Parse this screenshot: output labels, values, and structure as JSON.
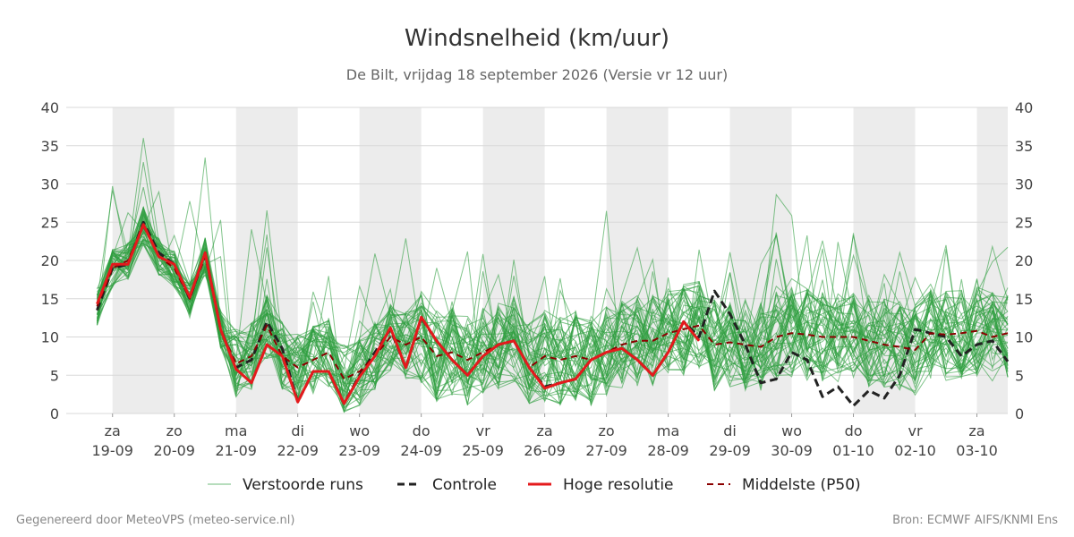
{
  "chart_data": {
    "type": "line",
    "title": "Windsnelheid (km/uur)",
    "subtitle": "De Bilt, vrijdag 18 september 2026 (Versie vr 12 uur)",
    "ylim": [
      0,
      40
    ],
    "yticks": [
      0,
      5,
      10,
      15,
      20,
      25,
      30,
      35,
      40
    ],
    "x_range_days": [
      -0.75,
      14.5
    ],
    "day_labels": [
      {
        "day": "za",
        "date": "19-09"
      },
      {
        "day": "zo",
        "date": "20-09"
      },
      {
        "day": "ma",
        "date": "21-09"
      },
      {
        "day": "di",
        "date": "22-09"
      },
      {
        "day": "wo",
        "date": "23-09"
      },
      {
        "day": "do",
        "date": "24-09"
      },
      {
        "day": "vr",
        "date": "25-09"
      },
      {
        "day": "za",
        "date": "26-09"
      },
      {
        "day": "zo",
        "date": "27-09"
      },
      {
        "day": "ma",
        "date": "28-09"
      },
      {
        "day": "di",
        "date": "29-09"
      },
      {
        "day": "wo",
        "date": "30-09"
      },
      {
        "day": "do",
        "date": "01-10"
      },
      {
        "day": "vr",
        "date": "02-10"
      },
      {
        "day": "za",
        "date": "03-10"
      }
    ],
    "shaded_days": [
      0,
      2,
      4,
      6,
      8,
      10,
      12,
      14
    ],
    "time_step_days": 0.25,
    "series": [
      {
        "name": "Hoge resolutie",
        "color": "#e41a1c",
        "style": "solid",
        "x_days": [
          -0.25,
          -0.0,
          0.25,
          0.5,
          0.75,
          1.0,
          1.25,
          1.5,
          1.75,
          2.0,
          2.25,
          2.5,
          2.75,
          3.0,
          3.25,
          3.5,
          3.75,
          4.0,
          4.25,
          4.5,
          4.75,
          5.0,
          5.25,
          5.5,
          5.75,
          6.0,
          6.25,
          6.5,
          6.75,
          7.0,
          7.25,
          7.5,
          7.75,
          8.0,
          8.25,
          8.5,
          8.75,
          9.0,
          9.25,
          9.5
        ],
        "values": [
          14.3,
          19.5,
          19.5,
          24.7,
          20.5,
          19.5,
          15.2,
          21.0,
          11.0,
          5.8,
          4.0,
          9.0,
          7.5,
          1.5,
          5.5,
          5.5,
          1.3,
          4.8,
          7.5,
          11.2,
          6.0,
          12.6,
          9.5,
          7.0,
          5.0,
          7.5,
          9.0,
          9.5,
          6.0,
          3.3,
          4.0,
          4.5,
          7.0,
          8.0,
          8.5,
          7.0,
          5.0,
          8.0,
          12.0,
          9.5
        ]
      },
      {
        "name": "Controle",
        "color": "#222222",
        "style": "dashed",
        "x_days": [
          -0.25,
          -0.0,
          0.25,
          0.5,
          0.75,
          1.0,
          1.25,
          1.5,
          1.75,
          2.0,
          2.25,
          2.5,
          2.75,
          3.0,
          3.25,
          3.5,
          3.75,
          4.0,
          4.25,
          4.5,
          4.75,
          5.0,
          5.25,
          5.5,
          5.75,
          6.0,
          6.25,
          6.5,
          6.75,
          7.0,
          7.25,
          7.5,
          7.75,
          8.0,
          8.25,
          8.5,
          8.75,
          9.0,
          9.25,
          9.5,
          9.75,
          10.0,
          10.25,
          10.5,
          10.75,
          11.0,
          11.25,
          11.5,
          11.75,
          12.0,
          12.25,
          12.5,
          12.75,
          13.0,
          13.25,
          13.5,
          13.75,
          14.0,
          14.25,
          14.5
        ],
        "values": [
          13.5,
          19.0,
          19.5,
          25.0,
          21.0,
          19.5,
          15.0,
          21.0,
          11.0,
          6.0,
          7.0,
          12.0,
          8.5,
          1.5,
          5.5,
          5.5,
          1.3,
          5.0,
          8.0,
          11.0,
          6.0,
          12.5,
          9.5,
          7.0,
          5.0,
          7.5,
          9.0,
          9.5,
          6.0,
          3.5,
          4.0,
          4.5,
          7.0,
          8.0,
          8.5,
          7.0,
          5.0,
          8.0,
          12.0,
          10.0,
          16.0,
          13.0,
          9.0,
          4.0,
          4.5,
          8.0,
          7.0,
          2.2,
          3.5,
          1.0,
          3.0,
          2.0,
          5.0,
          11.0,
          10.5,
          10.0,
          7.5,
          9.0,
          9.5,
          6.8
        ]
      },
      {
        "name": "Middelste (P50)",
        "color": "#8b0000",
        "style": "dashed",
        "x_days": [
          -0.25,
          -0.0,
          0.25,
          0.5,
          0.75,
          1.0,
          1.25,
          1.5,
          1.75,
          2.0,
          2.25,
          2.5,
          2.75,
          3.0,
          3.25,
          3.5,
          3.75,
          4.0,
          4.25,
          4.5,
          4.75,
          5.0,
          5.25,
          5.5,
          5.75,
          6.0,
          6.25,
          6.5,
          6.75,
          7.0,
          7.25,
          7.5,
          7.75,
          8.0,
          8.25,
          8.5,
          8.75,
          9.0,
          9.25,
          9.5,
          9.75,
          10.0,
          10.25,
          10.5,
          10.75,
          11.0,
          11.25,
          11.5,
          11.75,
          12.0,
          12.25,
          12.5,
          12.75,
          13.0,
          13.25,
          13.5,
          13.75,
          14.0,
          14.25,
          14.5
        ],
        "values": [
          14.0,
          19.0,
          20.0,
          24.5,
          20.5,
          19.0,
          15.0,
          20.5,
          11.0,
          6.5,
          7.5,
          11.5,
          7.5,
          6.0,
          7.0,
          8.0,
          4.5,
          5.5,
          7.5,
          10.0,
          9.0,
          10.0,
          7.5,
          8.0,
          7.0,
          8.0,
          9.0,
          9.5,
          6.0,
          7.5,
          7.0,
          7.5,
          7.0,
          8.0,
          9.0,
          9.5,
          9.5,
          10.5,
          11.0,
          11.5,
          9.0,
          9.3,
          9.0,
          8.7,
          10.0,
          10.5,
          10.3,
          10.0,
          10.0,
          10.0,
          9.5,
          9.0,
          8.7,
          8.3,
          10.5,
          10.3,
          10.5,
          10.8,
          10.0,
          10.5
        ]
      }
    ],
    "ensemble": {
      "name": "Verstoorde runs",
      "color": "#2e9e3f",
      "count": 50
    },
    "legend_position": "bottom"
  },
  "footer": {
    "left": "Gegenereerd door MeteoVPS (meteo-service.nl)",
    "right": "Bron: ECMWF AIFS/KNMI Ens"
  }
}
